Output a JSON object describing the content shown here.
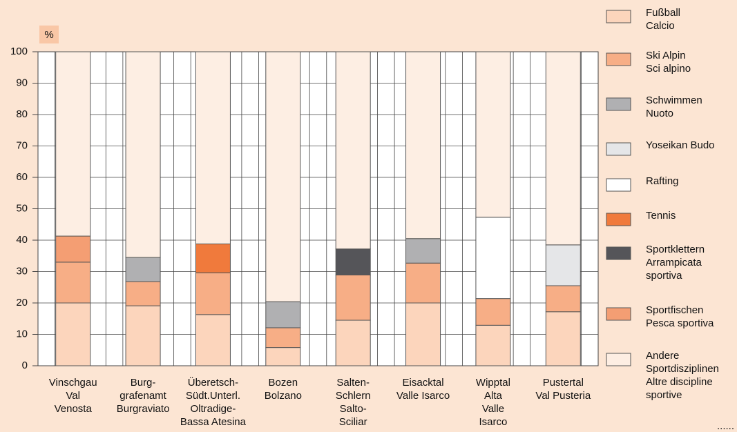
{
  "chart_data": {
    "type": "stacked_bar",
    "y_label": "%",
    "categories": [
      "Vinschgau\nVal\nVenosta",
      "Burg-\ngrafenamt\nBurgraviato",
      "Überetsch-\nSüdt.Unterl.\nOltradige-\nBassa Atesina",
      "Bozen\nBolzano",
      "Salten-\nSchlern\nSalto-\nSciliar",
      "Eisacktal\nValle Isarco",
      "Wipptal\nAlta\nValle\nIsarco",
      "Pustertal\nVal Pusteria"
    ],
    "series": [
      {
        "name": "Fußball\nCalcio",
        "color": "#fcd5bc",
        "values": [
          20,
          19.1,
          16.3,
          5.8,
          14.5,
          20,
          12.9,
          17.2
        ]
      },
      {
        "name": "Ski Alpin\nSci alpino",
        "color": "#f7ae86",
        "values": [
          13,
          7.7,
          13.3,
          6.3,
          14.4,
          12.7,
          8.5,
          8.3
        ]
      },
      {
        "name": "Schwimmen\nNuoto",
        "color": "#b0b0b2",
        "values": [
          null,
          7.7,
          null,
          8.3,
          null,
          7.8,
          null,
          null
        ]
      },
      {
        "name": "Yoseikan Budo",
        "color": "#e5e6e8",
        "values": [
          null,
          null,
          null,
          null,
          null,
          null,
          null,
          13
        ]
      },
      {
        "name": "Rafting",
        "color": "#ffffff",
        "values": [
          null,
          null,
          null,
          null,
          null,
          null,
          25.9,
          null
        ]
      },
      {
        "name": "Tennis",
        "color": "#f07a3c",
        "values": [
          null,
          null,
          9.2,
          null,
          null,
          null,
          null,
          null
        ]
      },
      {
        "name": "Sportklettern\nArrampicata\nsportiva",
        "color": "#555559",
        "values": [
          null,
          null,
          null,
          null,
          8.3,
          null,
          null,
          null
        ]
      },
      {
        "name": "Sportfischen\nPesca sportiva",
        "color": "#f49e73",
        "values": [
          8.3,
          null,
          null,
          null,
          null,
          null,
          null,
          null
        ]
      },
      {
        "name": "Andere\nSportdisziplinen\nAltre discipline\nsportive",
        "color": "#fdeee3",
        "values": [
          58.7,
          65.5,
          61.2,
          79.6,
          62.8,
          59.5,
          52.7,
          61.5
        ]
      }
    ],
    "ylim": [
      0,
      100
    ],
    "yticks": [
      0,
      10,
      20,
      30,
      40,
      50,
      60,
      70,
      80,
      90,
      100
    ],
    "grid": true,
    "note": "......"
  }
}
